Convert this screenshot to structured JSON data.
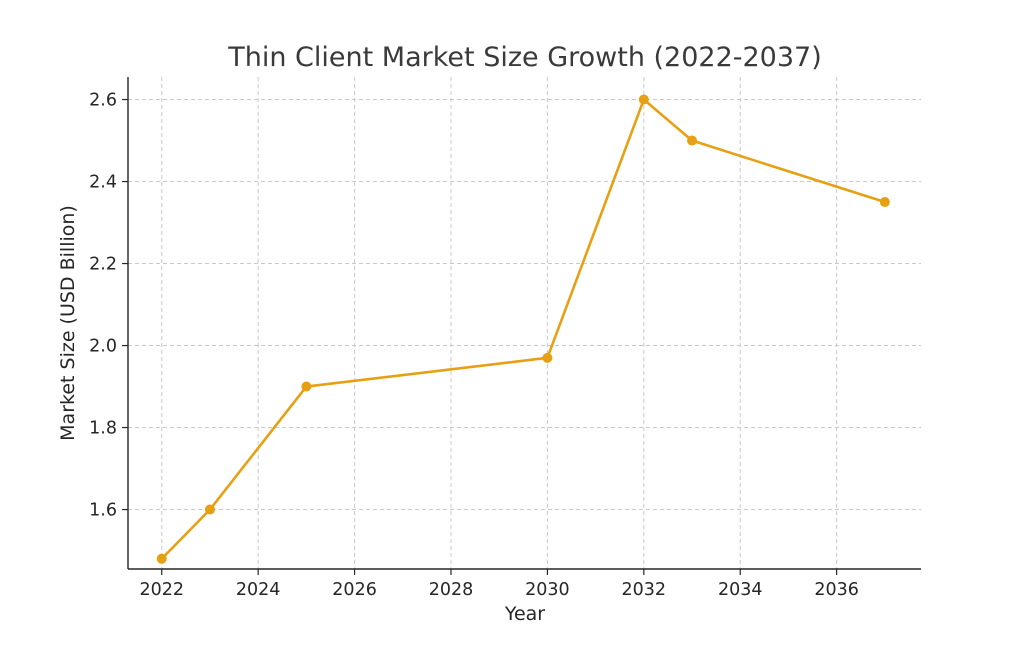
{
  "chart_data": {
    "type": "line",
    "title": "Thin Client Market Size Growth (2022-2037)",
    "xlabel": "Year",
    "ylabel": "Market Size (USD Billion)",
    "xlim": [
      2021.3,
      2037.75
    ],
    "ylim": [
      1.455,
      2.655
    ],
    "x_ticks": [
      2022,
      2024,
      2026,
      2028,
      2030,
      2032,
      2034,
      2036
    ],
    "y_ticks": [
      1.6,
      1.8,
      2.0,
      2.2,
      2.4,
      2.6
    ],
    "grid": true,
    "series": [
      {
        "x": [
          2022,
          2023,
          2025,
          2030,
          2032,
          2033,
          2037
        ],
        "values": [
          1.48,
          1.6,
          1.9,
          1.97,
          2.6,
          2.5,
          2.35
        ],
        "color": "#e6a012",
        "marker": "circle"
      }
    ]
  }
}
